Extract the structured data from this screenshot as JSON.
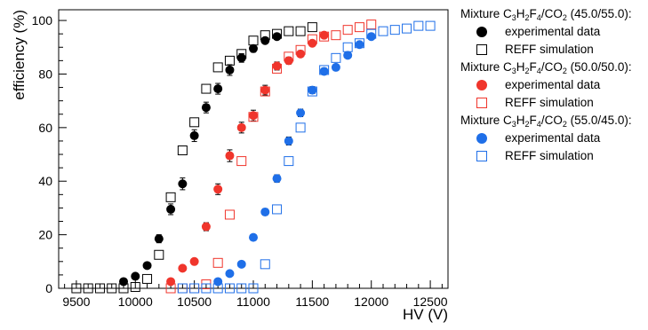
{
  "chart_data": {
    "type": "scatter",
    "title": "",
    "xlabel": "HV (V)",
    "ylabel": "efficiency (%)",
    "xlim": [
      9350,
      12650
    ],
    "ylim": [
      0,
      104
    ],
    "xticks": [
      "9500",
      "10000",
      "10500",
      "11000",
      "11500",
      "12000",
      "12500"
    ],
    "yticks": [
      "0",
      "20",
      "40",
      "60",
      "80",
      "100"
    ],
    "grid": false,
    "legend_position": "right",
    "groups": [
      {
        "header": {
          "prefix": "Mixture C",
          "c": "3",
          "h_label": "H",
          "h": "2",
          "f_label": "F",
          "f": "4",
          "co2": "/CO",
          "two": "2",
          "ratio": " (45.0/55.0):"
        },
        "color": "#000000",
        "series": [
          {
            "name": "experimental data",
            "marker": "filled-circle",
            "points": [
              [
                9900,
                2.5
              ],
              [
                10000,
                4.5
              ],
              [
                10100,
                8.5
              ],
              [
                10200,
                18.5
              ],
              [
                10300,
                29.5
              ],
              [
                10400,
                39
              ],
              [
                10500,
                57
              ],
              [
                10600,
                67.5
              ],
              [
                10700,
                74.5
              ],
              [
                10800,
                81.5
              ],
              [
                10900,
                86
              ],
              [
                11000,
                89.5
              ],
              [
                11100,
                92.5
              ],
              [
                11200,
                94
              ]
            ],
            "errors": [
              0.5,
              0.7,
              1,
              1.5,
              2,
              2.2,
              2.2,
              2,
              2,
              2,
              1.6,
              1.3,
              1,
              0.8
            ]
          },
          {
            "name": "REFF simulation",
            "marker": "open-square",
            "points": [
              [
                9500,
                0
              ],
              [
                9600,
                0
              ],
              [
                9700,
                0
              ],
              [
                9800,
                0
              ],
              [
                9900,
                0
              ],
              [
                10000,
                0.5
              ],
              [
                10100,
                3.5
              ],
              [
                10200,
                12.5
              ],
              [
                10300,
                34
              ],
              [
                10400,
                51.5
              ],
              [
                10500,
                62
              ],
              [
                10600,
                74.5
              ],
              [
                10700,
                82.5
              ],
              [
                10800,
                85
              ],
              [
                10900,
                87.5
              ],
              [
                11000,
                92.5
              ],
              [
                11100,
                94.5
              ],
              [
                11200,
                95
              ],
              [
                11300,
                96
              ],
              [
                11400,
                96
              ],
              [
                11500,
                97.5
              ]
            ]
          }
        ]
      },
      {
        "header": {
          "prefix": "Mixture C",
          "c": "3",
          "h_label": "H",
          "h": "2",
          "f_label": "F",
          "f": "4",
          "co2": "/CO",
          "two": "2",
          "ratio": " (50.0/50.0):"
        },
        "color": "#f0352c",
        "series": [
          {
            "name": "experimental data",
            "marker": "filled-circle",
            "points": [
              [
                10300,
                2.5
              ],
              [
                10400,
                7.5
              ],
              [
                10500,
                10
              ],
              [
                10600,
                23
              ],
              [
                10700,
                37
              ],
              [
                10800,
                49.5
              ],
              [
                10900,
                60
              ],
              [
                11000,
                64.5
              ],
              [
                11100,
                74
              ],
              [
                11200,
                83
              ],
              [
                11300,
                85
              ],
              [
                11400,
                87.5
              ],
              [
                11500,
                91.5
              ],
              [
                11600,
                94.5
              ]
            ],
            "errors": [
              0.3,
              0.5,
              0.7,
              1.5,
              2,
              2.2,
              2,
              2,
              1.8,
              1.5,
              1.3,
              1.2,
              1,
              0.8
            ]
          },
          {
            "name": "REFF simulation",
            "marker": "open-square",
            "points": [
              [
                10300,
                0
              ],
              [
                10400,
                0
              ],
              [
                10500,
                0
              ],
              [
                10600,
                1.5
              ],
              [
                10700,
                9.5
              ],
              [
                10800,
                27.5
              ],
              [
                10900,
                47.5
              ],
              [
                11000,
                64
              ],
              [
                11100,
                73.5
              ],
              [
                11200,
                82
              ],
              [
                11300,
                86.5
              ],
              [
                11400,
                89
              ],
              [
                11500,
                93
              ],
              [
                11600,
                94
              ],
              [
                11700,
                94.5
              ],
              [
                11800,
                96.5
              ],
              [
                11900,
                97.5
              ],
              [
                12000,
                98.5
              ]
            ]
          }
        ]
      },
      {
        "header": {
          "prefix": "Mixture C",
          "c": "3",
          "h_label": "H",
          "h": "2",
          "f_label": "F",
          "f": "4",
          "co2": "/CO",
          "two": "2",
          "ratio": " (55.0/45.0):"
        },
        "color": "#1f6fe8",
        "series": [
          {
            "name": "experimental data",
            "marker": "filled-circle",
            "points": [
              [
                10700,
                2.5
              ],
              [
                10800,
                5.5
              ],
              [
                10900,
                9
              ],
              [
                11000,
                19
              ],
              [
                11100,
                28.5
              ],
              [
                11200,
                41
              ],
              [
                11300,
                55
              ],
              [
                11400,
                65.5
              ],
              [
                11500,
                74
              ],
              [
                11600,
                81
              ],
              [
                11700,
                82.5
              ],
              [
                11800,
                87
              ],
              [
                11900,
                91
              ],
              [
                12000,
                94
              ]
            ],
            "errors": [
              0.3,
              0.5,
              0.7,
              1,
              1.2,
              1.4,
              1.5,
              1.4,
              1.3,
              1.2,
              1,
              0.9,
              0.8,
              0.7
            ]
          },
          {
            "name": "REFF simulation",
            "marker": "open-square",
            "points": [
              [
                10400,
                0
              ],
              [
                10500,
                0
              ],
              [
                10600,
                0
              ],
              [
                10700,
                0
              ],
              [
                10800,
                0
              ],
              [
                10900,
                0
              ],
              [
                11000,
                0
              ],
              [
                11100,
                9
              ],
              [
                11200,
                29.5
              ],
              [
                11300,
                47.5
              ],
              [
                11400,
                60
              ],
              [
                11500,
                73.5
              ],
              [
                11600,
                81.5
              ],
              [
                11700,
                86
              ],
              [
                11800,
                90
              ],
              [
                11900,
                91.5
              ],
              [
                12000,
                95
              ],
              [
                12100,
                96
              ],
              [
                12200,
                96.5
              ],
              [
                12300,
                97
              ],
              [
                12400,
                98
              ],
              [
                12500,
                98
              ]
            ]
          }
        ]
      }
    ]
  }
}
